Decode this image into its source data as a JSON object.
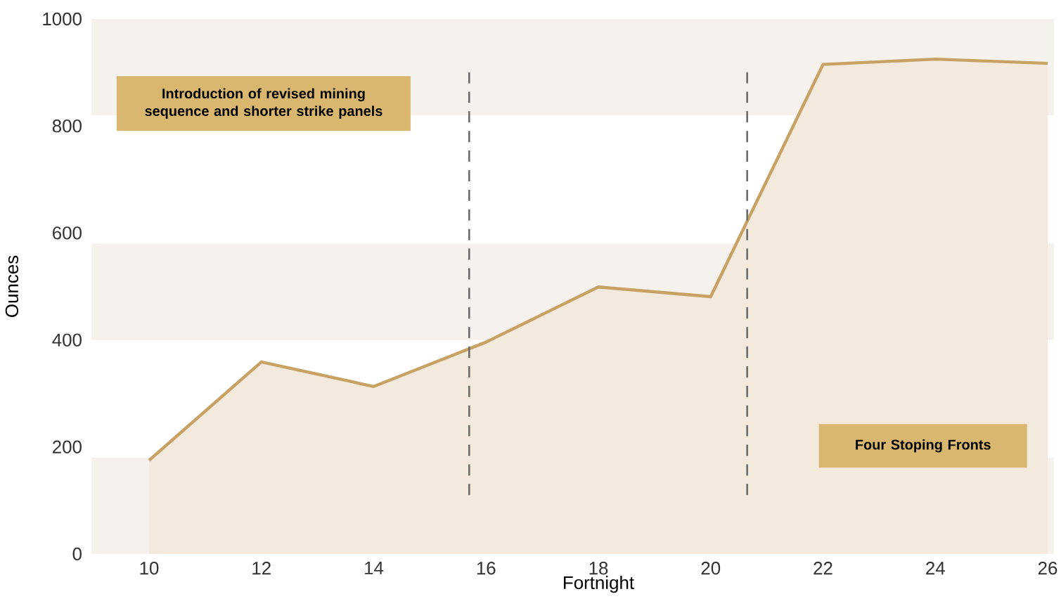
{
  "chart_data": {
    "type": "area",
    "xlabel": "Fortnight",
    "ylabel": "Ounces",
    "x": [
      10,
      12,
      14,
      16,
      18,
      20,
      22,
      24,
      26
    ],
    "series": [
      {
        "color": "#c8a165",
        "values": [
          175,
          359,
          313,
          396,
          499,
          481,
          915,
          925,
          917
        ]
      }
    ],
    "xlim": [
      10,
      26
    ],
    "ylim": [
      0,
      1000
    ],
    "xticks": [
      10,
      12,
      14,
      16,
      18,
      20,
      22,
      24,
      26
    ],
    "yticks": [
      0,
      200,
      400,
      600,
      800,
      1000
    ],
    "bands": [
      {
        "axis": "y",
        "from": 0,
        "to": 180,
        "color": "#f5f1ed"
      },
      {
        "axis": "y",
        "from": 400,
        "to": 580,
        "color": "#f5f1ed"
      },
      {
        "axis": "y",
        "from": 820,
        "to": 1000,
        "color": "#f5f1ed"
      }
    ],
    "ref_lines": [
      {
        "axis": "x",
        "value": 15.7,
        "color": "#6b6b6b",
        "line_style": "dashed"
      },
      {
        "axis": "x",
        "value": 20.65,
        "color": "#6b6b6b",
        "line_style": "dashed"
      }
    ],
    "annotations": [
      "Introduction of revised mining sequence and shorter strike panels",
      "Four Stoping Fronts"
    ]
  }
}
